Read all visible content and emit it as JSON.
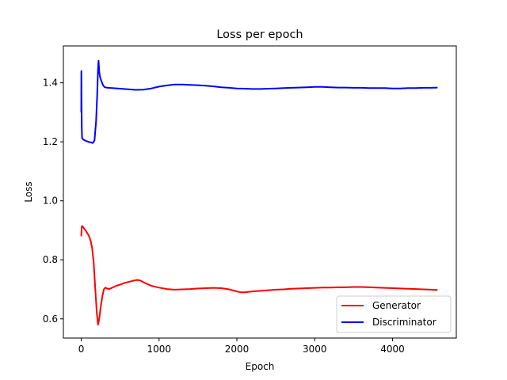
{
  "chart_data": {
    "type": "line",
    "title": "Loss per epoch",
    "xlabel": "Epoch",
    "ylabel": "Loss",
    "xlim": [
      -230,
      4820
    ],
    "ylim": [
      0.535,
      1.525
    ],
    "xticks": [
      0,
      1000,
      2000,
      3000,
      4000
    ],
    "yticks": [
      0.6,
      0.8,
      1.0,
      1.2,
      1.4
    ],
    "xtick_labels": [
      "0",
      "1000",
      "2000",
      "3000",
      "4000"
    ],
    "ytick_labels": [
      "0.6",
      "0.8",
      "1.0",
      "1.2",
      "1.4"
    ],
    "grid": false,
    "legend": {
      "position": "lower-right"
    },
    "series": [
      {
        "name": "Generator",
        "color": "#ff0000",
        "x": [
          0,
          5,
          10,
          20,
          40,
          60,
          80,
          100,
          120,
          140,
          160,
          180,
          200,
          215,
          230,
          250,
          270,
          290,
          310,
          330,
          360,
          400,
          450,
          500,
          560,
          620,
          680,
          720,
          760,
          800,
          850,
          900,
          1000,
          1100,
          1200,
          1300,
          1400,
          1500,
          1600,
          1700,
          1800,
          1900,
          2000,
          2050,
          2100,
          2200,
          2300,
          2400,
          2500,
          2600,
          2700,
          2800,
          2900,
          3000,
          3100,
          3200,
          3300,
          3400,
          3500,
          3600,
          3700,
          3800,
          3900,
          4000,
          4100,
          4200,
          4300,
          4400,
          4500,
          4580
        ],
        "y": [
          0.88,
          0.91,
          0.915,
          0.912,
          0.905,
          0.898,
          0.89,
          0.88,
          0.865,
          0.84,
          0.79,
          0.7,
          0.62,
          0.58,
          0.6,
          0.64,
          0.675,
          0.7,
          0.706,
          0.703,
          0.701,
          0.706,
          0.712,
          0.716,
          0.722,
          0.726,
          0.73,
          0.732,
          0.73,
          0.724,
          0.718,
          0.712,
          0.706,
          0.701,
          0.699,
          0.7,
          0.701,
          0.703,
          0.704,
          0.705,
          0.704,
          0.7,
          0.693,
          0.69,
          0.69,
          0.693,
          0.695,
          0.697,
          0.699,
          0.7,
          0.702,
          0.703,
          0.704,
          0.705,
          0.706,
          0.706,
          0.707,
          0.707,
          0.708,
          0.708,
          0.707,
          0.706,
          0.705,
          0.704,
          0.703,
          0.702,
          0.701,
          0.7,
          0.699,
          0.698
        ]
      },
      {
        "name": "Discriminator",
        "color": "#0000ff",
        "x": [
          0,
          1,
          3,
          6,
          10,
          30,
          60,
          90,
          120,
          150,
          170,
          190,
          205,
          215,
          222,
          230,
          240,
          260,
          280,
          300,
          340,
          400,
          500,
          600,
          700,
          800,
          900,
          1000,
          1100,
          1200,
          1300,
          1400,
          1500,
          1600,
          1700,
          1800,
          1900,
          2000,
          2100,
          2200,
          2300,
          2400,
          2500,
          2600,
          2700,
          2800,
          2900,
          3000,
          3100,
          3200,
          3300,
          3400,
          3500,
          3600,
          3700,
          3800,
          3900,
          4000,
          4100,
          4200,
          4300,
          4400,
          4500,
          4580
        ],
        "y": [
          1.3,
          1.44,
          1.35,
          1.25,
          1.212,
          1.207,
          1.203,
          1.2,
          1.198,
          1.196,
          1.205,
          1.27,
          1.36,
          1.445,
          1.475,
          1.44,
          1.42,
          1.405,
          1.392,
          1.385,
          1.383,
          1.382,
          1.38,
          1.378,
          1.376,
          1.377,
          1.381,
          1.387,
          1.391,
          1.394,
          1.394,
          1.393,
          1.392,
          1.39,
          1.388,
          1.385,
          1.383,
          1.381,
          1.38,
          1.379,
          1.379,
          1.38,
          1.381,
          1.382,
          1.383,
          1.384,
          1.385,
          1.386,
          1.386,
          1.385,
          1.384,
          1.384,
          1.383,
          1.383,
          1.382,
          1.382,
          1.382,
          1.381,
          1.381,
          1.382,
          1.382,
          1.383,
          1.383,
          1.384
        ]
      }
    ]
  }
}
